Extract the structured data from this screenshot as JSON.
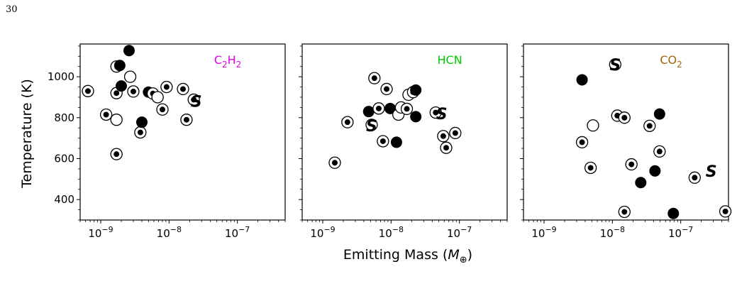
{
  "page_number": "30",
  "chart_data": {
    "type": "scatter",
    "xlabel": "Emitting Mass (",
    "xlabel_symbol": "M",
    "xlabel_subscript": "⊕",
    "xlabel_close": ")",
    "ylabel": "Temperature (K)",
    "x_scale": "log",
    "xlim": [
      5e-10,
      5e-07
    ],
    "ylim": [
      300,
      1160
    ],
    "y_ticks": [
      400,
      600,
      800,
      1000
    ],
    "x_ticks": [
      {
        "value": 1e-09,
        "base": "10",
        "exp": "−9"
      },
      {
        "value": 1e-08,
        "base": "10",
        "exp": "−8"
      },
      {
        "value": 1e-07,
        "base": "10",
        "exp": "−7"
      }
    ],
    "marker_legend_note": "filled / dotted / open circles",
    "panels": [
      {
        "title_main": "C",
        "title_sub1": "2",
        "title_mid": "H",
        "title_sub2": "2",
        "title_color": "#e600e6",
        "s_label": {
          "text": "S",
          "x": 2.5e-08,
          "y": 880
        },
        "points": [
          {
            "x": 6.5e-10,
            "y": 930,
            "style": "dot"
          },
          {
            "x": 1.2e-09,
            "y": 815,
            "style": "dot"
          },
          {
            "x": 1.7e-09,
            "y": 1050,
            "style": "open"
          },
          {
            "x": 1.7e-09,
            "y": 920,
            "style": "dot"
          },
          {
            "x": 1.7e-09,
            "y": 790,
            "style": "open"
          },
          {
            "x": 1.7e-09,
            "y": 622,
            "style": "dot"
          },
          {
            "x": 1.9e-09,
            "y": 1055,
            "style": "filled"
          },
          {
            "x": 2e-09,
            "y": 955,
            "style": "filled"
          },
          {
            "x": 2.6e-09,
            "y": 1128,
            "style": "filled"
          },
          {
            "x": 2.7e-09,
            "y": 1000,
            "style": "open"
          },
          {
            "x": 3e-09,
            "y": 928,
            "style": "dot"
          },
          {
            "x": 3.8e-09,
            "y": 728,
            "style": "dot"
          },
          {
            "x": 4e-09,
            "y": 778,
            "style": "filled"
          },
          {
            "x": 5e-09,
            "y": 925,
            "style": "filled"
          },
          {
            "x": 5.8e-09,
            "y": 918,
            "style": "dot"
          },
          {
            "x": 6.8e-09,
            "y": 900,
            "style": "open"
          },
          {
            "x": 8e-09,
            "y": 840,
            "style": "dot"
          },
          {
            "x": 9.2e-09,
            "y": 950,
            "style": "dot"
          },
          {
            "x": 1.6e-08,
            "y": 940,
            "style": "dot"
          },
          {
            "x": 1.8e-08,
            "y": 790,
            "style": "dot"
          },
          {
            "x": 2.3e-08,
            "y": 888,
            "style": "dot"
          }
        ]
      },
      {
        "title_main": "HCN",
        "title_color": "#00cc00",
        "s_label": {
          "text": "S",
          "x": 5.5e-08,
          "y": 820
        },
        "s_label_2": {
          "text": "S",
          "x": 5.2e-09,
          "y": 762
        },
        "points": [
          {
            "x": 1.5e-09,
            "y": 580,
            "style": "dot"
          },
          {
            "x": 2.3e-09,
            "y": 778,
            "style": "dot"
          },
          {
            "x": 4.7e-09,
            "y": 830,
            "style": "filled"
          },
          {
            "x": 5.2e-09,
            "y": 765,
            "style": "open"
          },
          {
            "x": 5.7e-09,
            "y": 993,
            "style": "dot"
          },
          {
            "x": 6.6e-09,
            "y": 845,
            "style": "dot"
          },
          {
            "x": 7.6e-09,
            "y": 685,
            "style": "dot"
          },
          {
            "x": 8.6e-09,
            "y": 940,
            "style": "dot"
          },
          {
            "x": 9.7e-09,
            "y": 845,
            "style": "filled"
          },
          {
            "x": 1.2e-08,
            "y": 680,
            "style": "filled"
          },
          {
            "x": 1.28e-08,
            "y": 815,
            "style": "open"
          },
          {
            "x": 1.4e-08,
            "y": 850,
            "style": "open"
          },
          {
            "x": 1.7e-08,
            "y": 843,
            "style": "dot"
          },
          {
            "x": 1.8e-08,
            "y": 912,
            "style": "open"
          },
          {
            "x": 2.1e-08,
            "y": 925,
            "style": "dot"
          },
          {
            "x": 2.3e-08,
            "y": 935,
            "style": "filled"
          },
          {
            "x": 2.3e-08,
            "y": 805,
            "style": "filled"
          },
          {
            "x": 4.5e-08,
            "y": 825,
            "style": "dot"
          },
          {
            "x": 5.8e-08,
            "y": 710,
            "style": "dot"
          },
          {
            "x": 6.4e-08,
            "y": 653,
            "style": "dot"
          },
          {
            "x": 8.7e-08,
            "y": 725,
            "style": "dot"
          }
        ]
      },
      {
        "title_main": "CO",
        "title_sub1": "2",
        "title_color": "#a0660a",
        "s_label": {
          "text": "S",
          "x": 2.8e-07,
          "y": 540
        },
        "s_label_2": {
          "text": "S",
          "x": 1.1e-08,
          "y": 1060
        },
        "points": [
          {
            "x": 3.6e-09,
            "y": 985,
            "style": "filled"
          },
          {
            "x": 3.6e-09,
            "y": 680,
            "style": "dot"
          },
          {
            "x": 4.8e-09,
            "y": 555,
            "style": "dot"
          },
          {
            "x": 5.2e-09,
            "y": 762,
            "style": "open"
          },
          {
            "x": 1.1e-08,
            "y": 1060,
            "style": "open"
          },
          {
            "x": 1.18e-08,
            "y": 810,
            "style": "dot"
          },
          {
            "x": 1.5e-08,
            "y": 800,
            "style": "dot"
          },
          {
            "x": 1.5e-08,
            "y": 340,
            "style": "dot"
          },
          {
            "x": 1.9e-08,
            "y": 572,
            "style": "dot"
          },
          {
            "x": 2.6e-08,
            "y": 483,
            "style": "filled"
          },
          {
            "x": 3.5e-08,
            "y": 760,
            "style": "dot"
          },
          {
            "x": 4.2e-08,
            "y": 540,
            "style": "filled"
          },
          {
            "x": 4.9e-08,
            "y": 818,
            "style": "filled"
          },
          {
            "x": 4.9e-08,
            "y": 635,
            "style": "dot"
          },
          {
            "x": 7.8e-08,
            "y": 332,
            "style": "filled"
          },
          {
            "x": 1.6e-07,
            "y": 507,
            "style": "dot"
          },
          {
            "x": 4.5e-07,
            "y": 342,
            "style": "dot"
          }
        ]
      }
    ]
  }
}
